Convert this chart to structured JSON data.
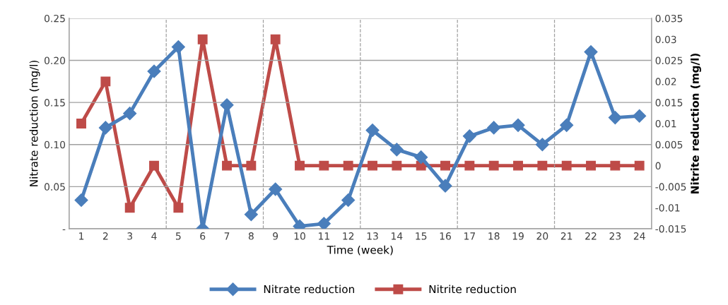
{
  "chart_data": {
    "type": "line",
    "xlabel": "Time (week)",
    "ylabel": "Nitrate reduction (mg/l)",
    "y2label": "Nitrite reduction (mg/l)",
    "x": [
      1,
      2,
      3,
      4,
      5,
      6,
      7,
      8,
      9,
      10,
      11,
      12,
      13,
      14,
      15,
      16,
      17,
      18,
      19,
      20,
      21,
      22,
      23,
      24
    ],
    "xlim": [
      0.5,
      24.5
    ],
    "xticks": [
      1,
      2,
      3,
      4,
      5,
      6,
      7,
      8,
      9,
      10,
      11,
      12,
      13,
      14,
      15,
      16,
      17,
      18,
      19,
      20,
      21,
      22,
      23,
      24
    ],
    "ylim": [
      0,
      0.25
    ],
    "yticks": [
      {
        "value": 0,
        "label": "-"
      },
      {
        "value": 0.05,
        "label": "0.05"
      },
      {
        "value": 0.1,
        "label": "0.10"
      },
      {
        "value": 0.15,
        "label": "0.15"
      },
      {
        "value": 0.2,
        "label": "0.20"
      },
      {
        "value": 0.25,
        "label": "0.25"
      }
    ],
    "y2lim": [
      -0.015,
      0.035
    ],
    "y2ticks": [
      -0.015,
      -0.01,
      -0.005,
      0,
      0.005,
      0.01,
      0.015,
      0.02,
      0.025,
      0.03,
      0.035
    ],
    "series": [
      {
        "name": "Nitrate reduction",
        "color": "#4a7ebb",
        "marker": "diamond",
        "values": [
          0.034,
          0.12,
          0.137,
          0.187,
          0.216,
          0.0,
          0.147,
          0.017,
          0.047,
          0.003,
          0.006,
          0.034,
          0.117,
          0.094,
          0.085,
          0.051,
          0.11,
          0.12,
          0.123,
          0.1,
          0.123,
          0.21,
          0.132,
          0.134
        ]
      },
      {
        "name": "Nitrite reduction",
        "color": "#be4b48",
        "marker": "square",
        "axis": "y2",
        "values": [
          0.01,
          0.02,
          -0.01,
          0,
          -0.01,
          0.03,
          0,
          0,
          0.03,
          0,
          0,
          0,
          0,
          0,
          0,
          0,
          0,
          0,
          0,
          0,
          0,
          0,
          0,
          0
        ]
      }
    ],
    "ref_lines": [
      {
        "axis": "x",
        "value": 4.5,
        "color": "#a0a0a0",
        "line_style": "dashed"
      },
      {
        "axis": "x",
        "value": 8.5,
        "color": "#a0a0a0",
        "line_style": "dashed"
      },
      {
        "axis": "x",
        "value": 12.5,
        "color": "#a0a0a0",
        "line_style": "dashed"
      },
      {
        "axis": "x",
        "value": 16.5,
        "color": "#a0a0a0",
        "line_style": "dashed"
      },
      {
        "axis": "x",
        "value": 20.5,
        "color": "#a0a0a0",
        "line_style": "dashed"
      }
    ],
    "grid": "y",
    "legend": "bottom"
  }
}
